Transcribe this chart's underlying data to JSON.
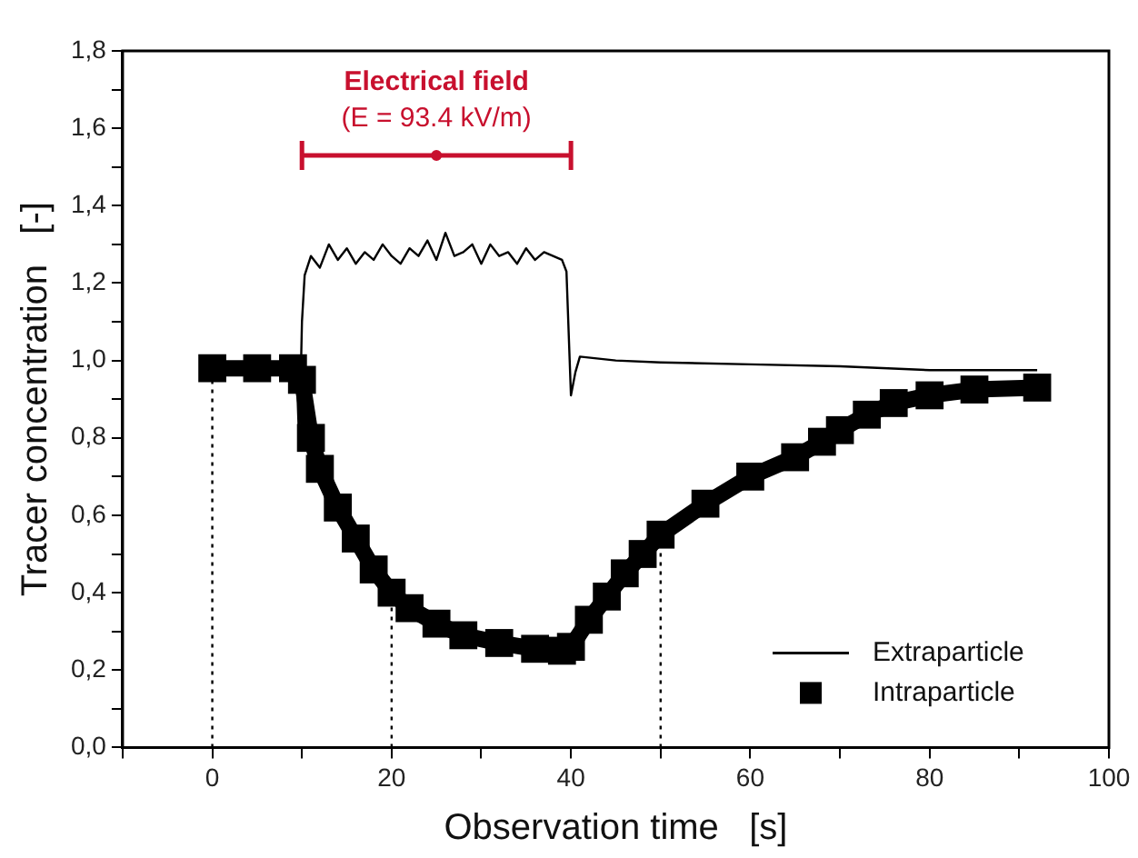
{
  "chart_data": {
    "type": "line",
    "xlabel": "Observation time   [s]",
    "ylabel": "Tracer concentration   [-]",
    "xlim": [
      -10,
      100
    ],
    "ylim": [
      0,
      1.8
    ],
    "xticks": [
      {
        "value": -10,
        "label": null
      },
      0,
      {
        "value": 10,
        "label": null
      },
      20,
      {
        "value": 30,
        "label": null
      },
      40,
      {
        "value": 50,
        "label": null
      },
      60,
      {
        "value": 70,
        "label": null
      },
      80,
      {
        "value": 90,
        "label": null
      },
      100
    ],
    "yticks": [
      {
        "value": 0,
        "label": "0,0"
      },
      {
        "value": 0.1,
        "label": null
      },
      {
        "value": 0.2,
        "label": "0,2"
      },
      {
        "value": 0.3,
        "label": null
      },
      {
        "value": 0.4,
        "label": "0,4"
      },
      {
        "value": 0.5,
        "label": null
      },
      {
        "value": 0.6,
        "label": "0,6"
      },
      {
        "value": 0.7,
        "label": null
      },
      {
        "value": 0.8,
        "label": "0,8"
      },
      {
        "value": 0.9,
        "label": null
      },
      {
        "value": 1.0,
        "label": "1,0"
      },
      {
        "value": 1.1,
        "label": null
      },
      {
        "value": 1.2,
        "label": "1,2"
      },
      {
        "value": 1.3,
        "label": null
      },
      {
        "value": 1.4,
        "label": "1,4"
      },
      {
        "value": 1.5,
        "label": null
      },
      {
        "value": 1.6,
        "label": "1,6"
      },
      {
        "value": 1.7,
        "label": null
      },
      {
        "value": 1.8,
        "label": "1,8"
      }
    ],
    "grid": false,
    "legend": "bottom right",
    "annotations": [
      "Electrical field",
      "(E = 93.4 kV/m)"
    ],
    "series": [
      {
        "type": "scatter",
        "marker": "circle",
        "color": "#c8102e",
        "x": [
          25
        ],
        "values": [
          1.53
        ],
        "xerrors": [
          [
            10,
            40
          ]
        ]
      },
      {
        "name": "Extraparticle",
        "marker": "none",
        "line_style": "solid",
        "color": "#000000",
        "x": [
          0,
          5,
          9.4,
          9.7,
          10,
          10.3,
          11,
          12,
          13,
          14,
          15,
          16,
          17,
          18,
          19,
          20,
          21,
          22,
          23,
          24,
          25,
          26,
          27,
          28,
          29,
          30,
          31,
          32,
          33,
          34,
          35,
          36,
          37,
          38,
          39,
          39.5,
          40,
          40.5,
          41,
          45,
          50,
          60,
          70,
          80,
          92
        ],
        "values": [
          0.98,
          0.98,
          0.98,
          0.78,
          1.1,
          1.22,
          1.27,
          1.24,
          1.3,
          1.26,
          1.29,
          1.25,
          1.28,
          1.26,
          1.3,
          1.27,
          1.25,
          1.29,
          1.27,
          1.31,
          1.26,
          1.33,
          1.27,
          1.28,
          1.3,
          1.25,
          1.3,
          1.27,
          1.28,
          1.25,
          1.29,
          1.26,
          1.28,
          1.27,
          1.26,
          1.23,
          0.91,
          0.97,
          1.01,
          1.0,
          0.995,
          0.99,
          0.985,
          0.975,
          0.975
        ]
      },
      {
        "name": "Intraparticle",
        "marker": "square",
        "line_style": "solid",
        "color": "#000000",
        "x": [
          0,
          5,
          9,
          10,
          11,
          12,
          14,
          16,
          18,
          20,
          22,
          25,
          28,
          32,
          36,
          39,
          40,
          42,
          44,
          46,
          48,
          50,
          55,
          60,
          65,
          68,
          70,
          73,
          76,
          80,
          85,
          92
        ],
        "values": [
          0.98,
          0.98,
          0.98,
          0.95,
          0.8,
          0.72,
          0.62,
          0.54,
          0.46,
          0.4,
          0.36,
          0.32,
          0.29,
          0.27,
          0.255,
          0.25,
          0.26,
          0.33,
          0.39,
          0.45,
          0.5,
          0.55,
          0.63,
          0.7,
          0.75,
          0.79,
          0.82,
          0.86,
          0.89,
          0.91,
          0.925,
          0.93
        ]
      },
      {
        "marker": "none",
        "line_style": "dotted",
        "color": "#000000",
        "x": [
          0,
          0
        ],
        "values": [
          0,
          0.98
        ]
      },
      {
        "marker": "none",
        "line_style": "dotted",
        "color": "#000000",
        "x": [
          20,
          20
        ],
        "values": [
          0,
          0.4
        ]
      },
      {
        "marker": "none",
        "line_style": "dotted",
        "color": "#000000",
        "x": [
          50,
          50
        ],
        "values": [
          0,
          0.55
        ]
      }
    ]
  }
}
